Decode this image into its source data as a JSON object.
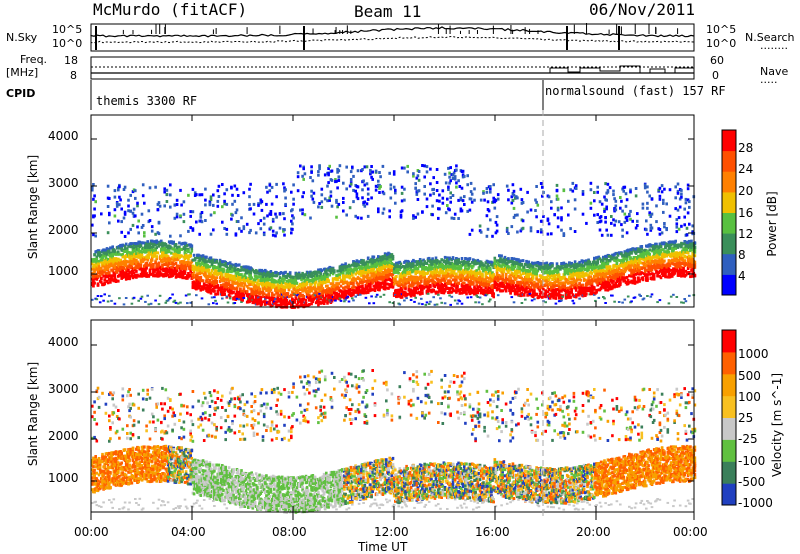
{
  "header": {
    "title": "McMurdo (fitACF)",
    "beam": "Beam 11",
    "date": "06/Nov/2011"
  },
  "left_labels": {
    "nsky": "N.Sky",
    "freq": "Freq.",
    "freq_unit": "[MHz]",
    "cpid": "CPID"
  },
  "right_labels": {
    "nsearch": "N.Search",
    "nave": "Nave",
    "nsearch_line": "........",
    "nave_line": "....."
  },
  "top_axes": {
    "noise_ticks": [
      "10^5",
      "10^0"
    ],
    "noise_right_ticks": [
      "10^5",
      "10^0"
    ],
    "freq_ticks": [
      "18",
      "8"
    ],
    "nave_ticks": [
      "60",
      "0"
    ]
  },
  "cpid": [
    {
      "label": "themis 3300 RF",
      "start": "00:00",
      "end": "18:00"
    },
    {
      "label": "normalsound (fast) 157 RF",
      "start": "18:00",
      "end": "24:00"
    }
  ],
  "chart_data": [
    {
      "type": "heatmap",
      "name": "power",
      "ylabel": "Slant Range [km]",
      "y_ticks": [
        "4000",
        "3000",
        "2000",
        "1000"
      ],
      "ylim": [
        180,
        4500
      ],
      "xlim": [
        "00:00",
        "24:00"
      ],
      "colorbar": {
        "label": "Power [dB]",
        "ticks": [
          "28",
          "24",
          "20",
          "16",
          "12",
          "8",
          "4"
        ],
        "colors": [
          "#0000ff",
          "#2f5fbf",
          "#3a8f5a",
          "#58c040",
          "#f0c000",
          "#ff8000",
          "#ff5000",
          "#ff0000"
        ]
      }
    },
    {
      "type": "heatmap",
      "name": "velocity",
      "ylabel": "Slant Range [km]",
      "y_ticks": [
        "4000",
        "3000",
        "2000",
        "1000"
      ],
      "ylim": [
        180,
        4500
      ],
      "xlim": [
        "00:00",
        "24:00"
      ],
      "colorbar": {
        "label": "Velocity [m s^-1]",
        "ticks": [
          "1000",
          "500",
          "100",
          "25",
          "-25",
          "-100",
          "-500",
          "-1000"
        ],
        "colors": [
          "#2040c0",
          "#3a7f5a",
          "#60c040",
          "#c8c8c8",
          "#f8c020",
          "#f8a000",
          "#ff6000",
          "#ff0000"
        ]
      }
    }
  ],
  "x_axis": {
    "ticks": [
      "00:00",
      "04:00",
      "08:00",
      "12:00",
      "16:00",
      "20:00",
      "00:00"
    ],
    "label": "Time UT"
  }
}
